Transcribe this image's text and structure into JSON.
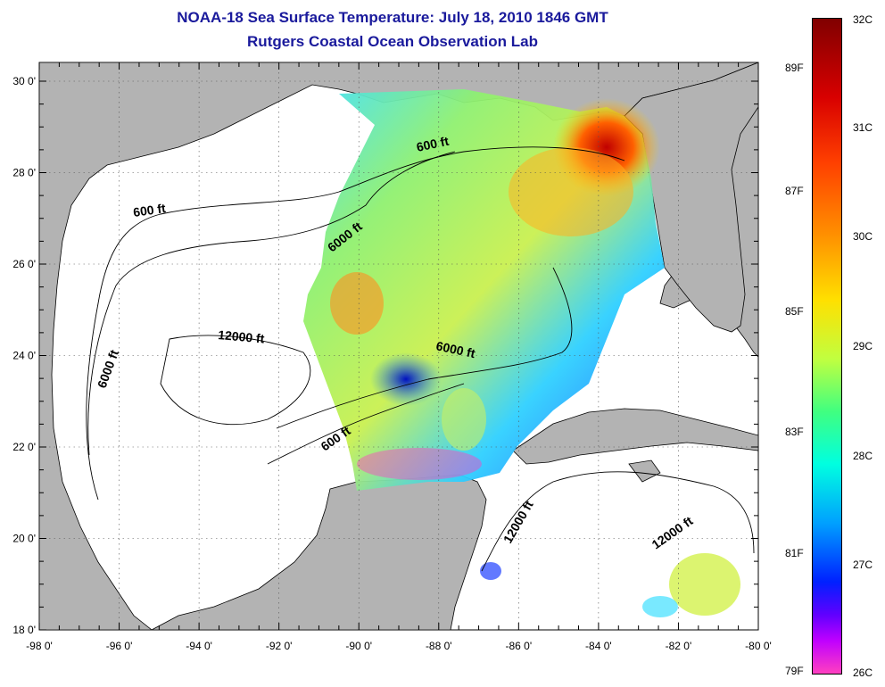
{
  "header": {
    "title": "NOAA-18 Sea Surface Temperature:  July 18, 2010 1846 GMT",
    "subtitle": "Rutgers Coastal Ocean Observation Lab"
  },
  "map": {
    "x_ticks": [
      "-98 0'",
      "-96 0'",
      "-94 0'",
      "-92 0'",
      "-90 0'",
      "-88 0'",
      "-86 0'",
      "-84 0'",
      "-82 0'",
      "-80 0'"
    ],
    "y_ticks": [
      "18 0'",
      "20 0'",
      "22 0'",
      "24 0'",
      "26 0'",
      "28 0'",
      "30 0'"
    ],
    "contour_labels": [
      "600 ft",
      "600 ft",
      "6000 ft",
      "12000 ft",
      "6000 ft",
      "6000 ft",
      "600 ft",
      "12000 ft",
      "12000 ft"
    ],
    "colors": {
      "land": "#b3b3b3",
      "ocean": "#ffffff",
      "title": "#1a1a9c"
    }
  },
  "colorbar": {
    "celsius": [
      "32C",
      "31C",
      "30C",
      "29C",
      "28C",
      "27C",
      "26C"
    ],
    "fahrenheit": [
      "89F",
      "87F",
      "85F",
      "83F",
      "81F",
      "79F"
    ]
  }
}
